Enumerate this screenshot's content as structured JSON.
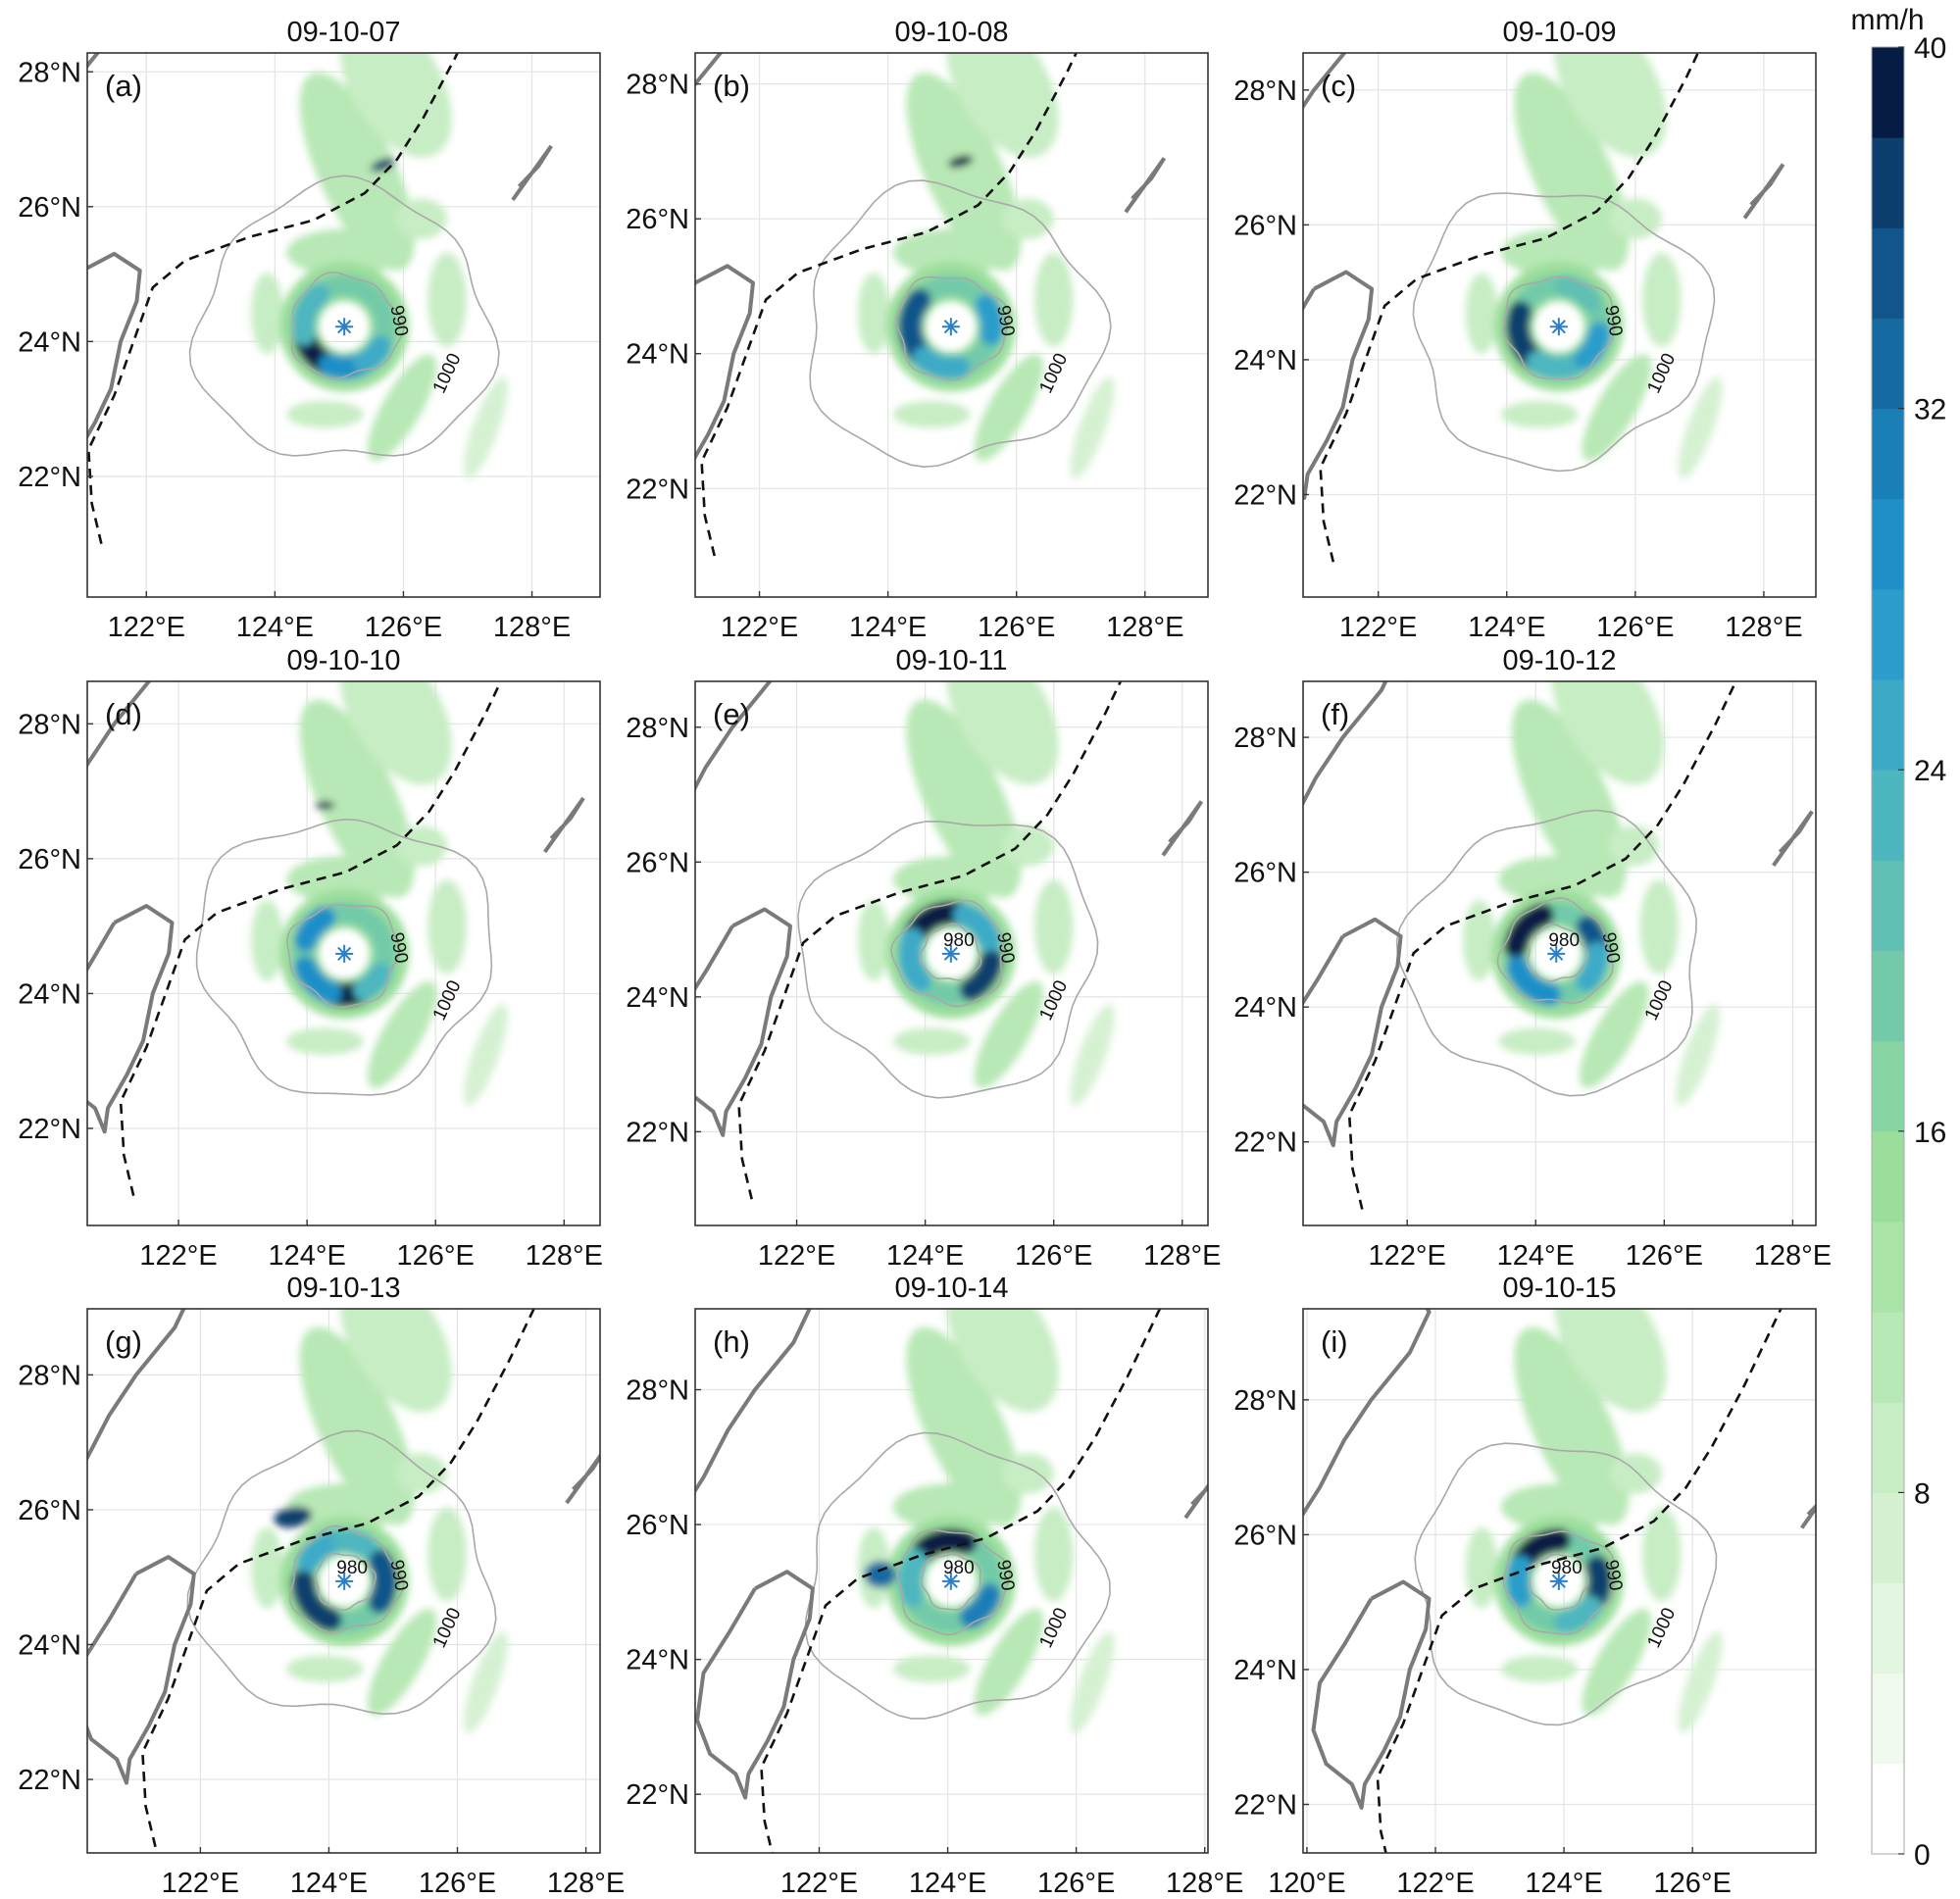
{
  "colorbar": {
    "unit": "mm/h",
    "ticks": [
      0,
      8,
      16,
      24,
      32,
      40
    ],
    "range": [
      0,
      40
    ],
    "level_step": 2,
    "colors": [
      "#ffffff",
      "#f0faef",
      "#e3f6e1",
      "#d5f1d2",
      "#c7edc4",
      "#b8e8b5",
      "#a9e3a7",
      "#9bde9b",
      "#86d5a2",
      "#72caa9",
      "#5fc0b3",
      "#4db6bf",
      "#3caac7",
      "#2c9dcb",
      "#1f8fc8",
      "#1a7eb7",
      "#156aa1",
      "#11558a",
      "#0c3f6d",
      "#071c45"
    ]
  },
  "colors": {
    "storm_center": "#2a7fc9",
    "isobar": "#a8a8a8",
    "coastline": "#7a7a7a",
    "track": "#111111",
    "grid": "#e4e4e4"
  },
  "legend_icons": {
    "storm_center": "asterisk-icon"
  },
  "panels": [
    {
      "label": "(a)",
      "title": "09-10-07",
      "lon_range": [
        121.08,
        129.06
      ],
      "lat_range": [
        20.21,
        28.28
      ],
      "lon_ticks": [
        122,
        124,
        126,
        128
      ],
      "lon_tick_labels": [
        "122°E",
        "124°E",
        "126°E",
        "128°E"
      ],
      "lat_ticks": [
        22,
        24,
        26,
        28
      ],
      "lat_tick_labels": [
        "22°N",
        "24°N",
        "26°N",
        "28°N"
      ],
      "storm_center": [
        125.08,
        24.22
      ],
      "contour_labels": [
        "990",
        "1000"
      ]
    },
    {
      "label": "(b)",
      "title": "09-10-08",
      "lon_range": [
        121.0,
        128.98
      ],
      "lat_range": [
        20.39,
        28.46
      ],
      "lon_ticks": [
        122,
        124,
        126,
        128
      ],
      "lon_tick_labels": [
        "122°E",
        "124°E",
        "126°E",
        "128°E"
      ],
      "lat_ticks": [
        22,
        24,
        26,
        28
      ],
      "lat_tick_labels": [
        "22°N",
        "24°N",
        "26°N",
        "28°N"
      ],
      "storm_center": [
        124.98,
        24.4
      ],
      "contour_labels": [
        "990",
        "1000"
      ]
    },
    {
      "label": "(c)",
      "title": "09-10-09",
      "lon_range": [
        120.83,
        128.81
      ],
      "lat_range": [
        20.48,
        28.55
      ],
      "lon_ticks": [
        122,
        124,
        126,
        128
      ],
      "lon_tick_labels": [
        "122°E",
        "124°E",
        "126°E",
        "128°E"
      ],
      "lat_ticks": [
        22,
        24,
        26,
        28
      ],
      "lat_tick_labels": [
        "22°N",
        "24°N",
        "26°N",
        "28°N"
      ],
      "storm_center": [
        124.81,
        24.49
      ],
      "contour_labels": [
        "990",
        "1000"
      ]
    },
    {
      "label": "(d)",
      "title": "09-10-10",
      "lon_range": [
        120.58,
        128.56
      ],
      "lat_range": [
        20.56,
        28.63
      ],
      "lon_ticks": [
        122,
        124,
        126,
        128
      ],
      "lon_tick_labels": [
        "122°E",
        "124°E",
        "126°E",
        "128°E"
      ],
      "lat_ticks": [
        22,
        24,
        26,
        28
      ],
      "lat_tick_labels": [
        "22°N",
        "24°N",
        "26°N",
        "28°N"
      ],
      "storm_center": [
        124.58,
        24.59
      ],
      "contour_labels": [
        "990",
        "1000"
      ]
    },
    {
      "label": "(e)",
      "title": "09-10-11",
      "lon_range": [
        120.42,
        128.4
      ],
      "lat_range": [
        20.61,
        28.68
      ],
      "lon_ticks": [
        122,
        124,
        126,
        128
      ],
      "lon_tick_labels": [
        "122°E",
        "124°E",
        "126°E",
        "128°E"
      ],
      "lat_ticks": [
        22,
        24,
        26,
        28
      ],
      "lat_tick_labels": [
        "22°N",
        "24°N",
        "26°N",
        "28°N"
      ],
      "storm_center": [
        124.4,
        24.64
      ],
      "contour_labels": [
        "980",
        "990",
        "1000"
      ]
    },
    {
      "label": "(f)",
      "title": "09-10-12",
      "lon_range": [
        120.38,
        128.36
      ],
      "lat_range": [
        20.76,
        28.83
      ],
      "lon_ticks": [
        122,
        124,
        126,
        128
      ],
      "lon_tick_labels": [
        "122°E",
        "124°E",
        "126°E",
        "128°E"
      ],
      "lat_ticks": [
        22,
        24,
        26,
        28
      ],
      "lat_tick_labels": [
        "22°N",
        "24°N",
        "26°N",
        "28°N"
      ],
      "storm_center": [
        124.32,
        24.79
      ],
      "contour_labels": [
        "980",
        "990",
        "1000"
      ]
    },
    {
      "label": "(g)",
      "title": "09-10-13",
      "lon_range": [
        120.24,
        128.22
      ],
      "lat_range": [
        20.91,
        28.98
      ],
      "lon_ticks": [
        122,
        124,
        126,
        128
      ],
      "lon_tick_labels": [
        "122°E",
        "124°E",
        "126°E",
        "128°E"
      ],
      "lat_ticks": [
        22,
        24,
        26,
        28
      ],
      "lat_tick_labels": [
        "22°N",
        "24°N",
        "26°N",
        "28°N"
      ],
      "storm_center": [
        124.24,
        24.94
      ],
      "contour_labels": [
        "980",
        "990",
        "1000"
      ]
    },
    {
      "label": "(h)",
      "title": "09-10-14",
      "lon_range": [
        120.07,
        128.05
      ],
      "lat_range": [
        21.13,
        29.2
      ],
      "lon_ticks": [
        122,
        124,
        126,
        128
      ],
      "lon_tick_labels": [
        "122°E",
        "124°E",
        "126°E",
        "128°E"
      ],
      "lat_ticks": [
        22,
        24,
        26,
        28
      ],
      "lat_tick_labels": [
        "22°N",
        "24°N",
        "26°N",
        "28°N"
      ],
      "storm_center": [
        124.05,
        25.16
      ],
      "contour_labels": [
        "980",
        "990",
        "1000"
      ]
    },
    {
      "label": "(i)",
      "title": "09-10-15",
      "lon_range": [
        119.94,
        127.92
      ],
      "lat_range": [
        21.28,
        29.35
      ],
      "lon_ticks": [
        120,
        122,
        124,
        126
      ],
      "lon_tick_labels": [
        "120°E",
        "122°E",
        "124°E",
        "126°E"
      ],
      "lat_ticks": [
        22,
        24,
        26,
        28
      ],
      "lat_tick_labels": [
        "22°N",
        "24°N",
        "26°N",
        "28°N"
      ],
      "storm_center": [
        123.92,
        25.31
      ],
      "contour_labels": [
        "980",
        "990",
        "1000"
      ]
    }
  ]
}
